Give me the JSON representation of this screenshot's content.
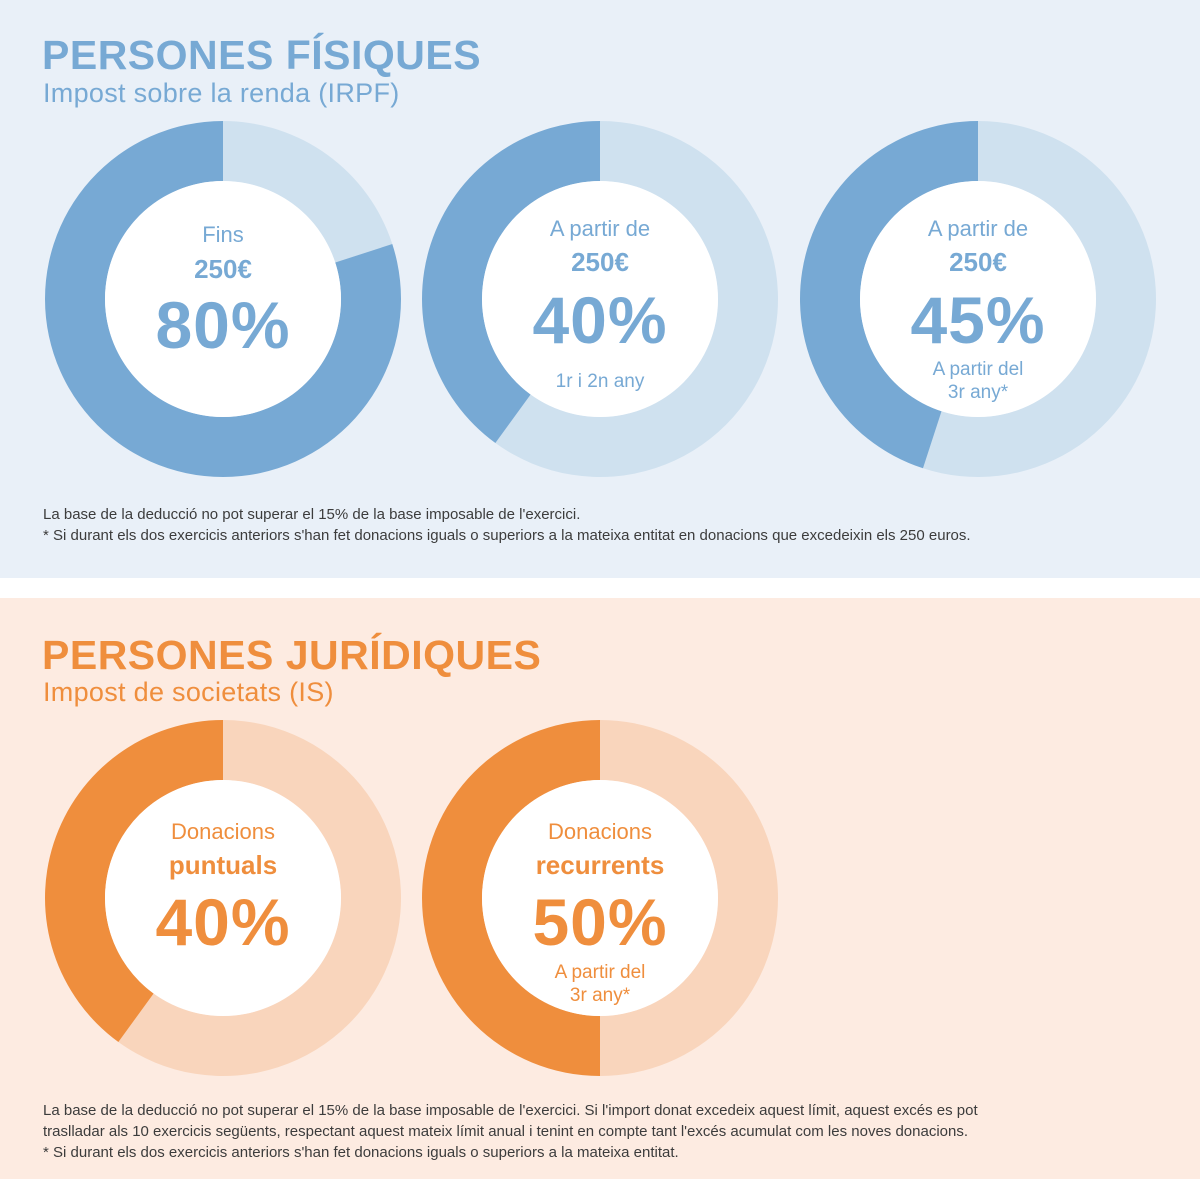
{
  "colors": {
    "blue_dark": "#77a9d4",
    "blue_light": "#cfe1ef",
    "orange_dark": "#ef8e3d",
    "orange_light": "#f9d5bc",
    "blue_bg": "#e9f0f8",
    "orange_bg": "#fdebe1"
  },
  "fisiques": {
    "title": "PERSONES FÍSIQUES",
    "subtitle": "Impost sobre la renda (IRPF)",
    "footnote_1": "La base de la deducció no pot superar el 15% de la base imposable de l'exercici.",
    "footnote_2": "*  Si durant els dos exercicis anteriors s'han fet donacions iguals o superiors a la mateixa entitat en donacions que excedeixin els 250 euros."
  },
  "juridiques": {
    "title": "PERSONES JURÍDIQUES",
    "subtitle": "Impost de societats (IS)",
    "footnote_1": "La base de la deducció no pot superar el 15% de la base imposable de l'exercici. Si l'import donat excedeix aquest límit, aquest excés es pot",
    "footnote_2": "traslladar als 10 exercicis següents, respectant aquest mateix límit anual i tenint en compte tant l'excés acumulat com les noves donacions.",
    "footnote_3": "*  Si durant els dos exercicis anteriors s'han fet donacions iguals o superiors a la mateixa entitat."
  },
  "chart_data": [
    {
      "type": "pie",
      "donut": true,
      "series": [
        {
          "values": [
            80,
            20
          ]
        }
      ],
      "pre": "Fins",
      "amount": "250€",
      "label": "80%",
      "note": []
    },
    {
      "type": "pie",
      "donut": true,
      "series": [
        {
          "values": [
            40,
            60
          ]
        }
      ],
      "pre": "A partir de",
      "amount": "250€",
      "label": "40%",
      "note": [
        "1r i 2n any"
      ]
    },
    {
      "type": "pie",
      "donut": true,
      "series": [
        {
          "values": [
            45,
            55
          ]
        }
      ],
      "pre": "A partir de",
      "amount": "250€",
      "label": "45%",
      "note": [
        "A partir del",
        "3r any*"
      ]
    },
    {
      "type": "pie",
      "donut": true,
      "series": [
        {
          "values": [
            40,
            60
          ]
        }
      ],
      "pre": "Donacions",
      "amount": "puntuals",
      "label": "40%",
      "note": []
    },
    {
      "type": "pie",
      "donut": true,
      "series": [
        {
          "values": [
            50,
            50
          ]
        }
      ],
      "pre": "Donacions",
      "amount": "recurrents",
      "label": "50%",
      "note": [
        "A partir del",
        "3r any*"
      ]
    }
  ]
}
